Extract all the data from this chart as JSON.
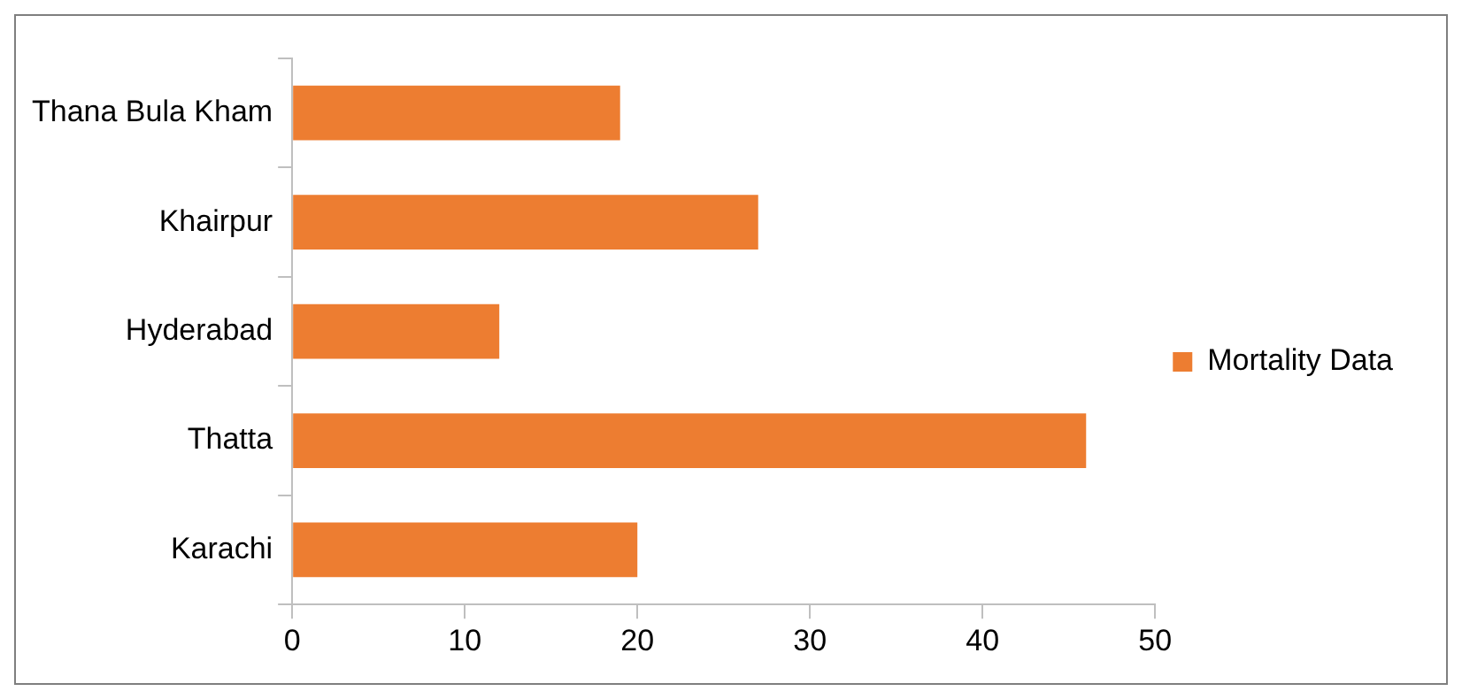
{
  "chart_data": {
    "type": "bar",
    "orientation": "horizontal",
    "categories": [
      "Thana Bula Kham",
      "Khairpur",
      "Hyderabad",
      "Thatta",
      "Karachi"
    ],
    "series": [
      {
        "name": "Mortality Data",
        "color": "#ed7d31",
        "values": [
          19,
          27,
          12,
          46,
          20
        ]
      }
    ],
    "xlim": [
      0,
      50
    ],
    "xticks": [
      0,
      10,
      20,
      30,
      40,
      50
    ],
    "grid": false,
    "legend": "right"
  }
}
